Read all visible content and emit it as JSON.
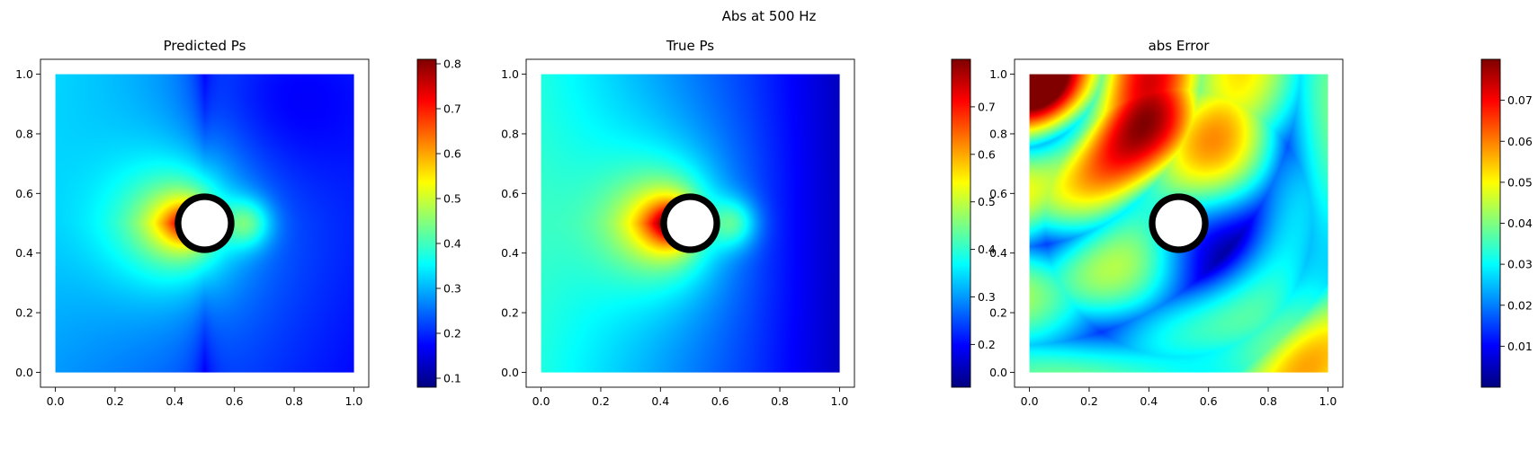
{
  "figure": {
    "suptitle": "Abs at 500 Hz"
  },
  "chart_data": [
    {
      "type": "heatmap",
      "title": "Predicted Ps",
      "field": "predicted",
      "xlim": [
        -0.05,
        1.05
      ],
      "ylim": [
        -0.05,
        1.05
      ],
      "x_ticks": [
        0.0,
        0.2,
        0.4,
        0.6,
        0.8,
        1.0
      ],
      "y_ticks": [
        0.0,
        0.2,
        0.4,
        0.6,
        0.8,
        1.0
      ],
      "x_tick_labels": [
        "0.0",
        "0.2",
        "0.4",
        "0.6",
        "0.8",
        "1.0"
      ],
      "y_tick_labels": [
        "0.0",
        "0.2",
        "0.4",
        "0.6",
        "0.8",
        "1.0"
      ],
      "obstacle": {
        "center": [
          0.5,
          0.5
        ],
        "radius": 0.1
      },
      "colormap": "jet",
      "colorbar": {
        "range": [
          0.08,
          0.81
        ],
        "ticks": [
          0.1,
          0.2,
          0.3,
          0.4,
          0.5,
          0.6,
          0.7,
          0.8
        ],
        "tick_labels": [
          "0.1",
          "0.2",
          "0.3",
          "0.4",
          "0.5",
          "0.6",
          "0.7",
          "0.8"
        ]
      }
    },
    {
      "type": "heatmap",
      "title": "True Ps",
      "field": "true",
      "xlim": [
        -0.05,
        1.05
      ],
      "ylim": [
        -0.05,
        1.05
      ],
      "x_ticks": [
        0.0,
        0.2,
        0.4,
        0.6,
        0.8,
        1.0
      ],
      "y_ticks": [
        0.0,
        0.2,
        0.4,
        0.6,
        0.8,
        1.0
      ],
      "x_tick_labels": [
        "0.0",
        "0.2",
        "0.4",
        "0.6",
        "0.8",
        "1.0"
      ],
      "y_tick_labels": [
        "0.0",
        "0.2",
        "0.4",
        "0.6",
        "0.8",
        "1.0"
      ],
      "obstacle": {
        "center": [
          0.5,
          0.5
        ],
        "radius": 0.1
      },
      "colormap": "jet",
      "colorbar": {
        "range": [
          0.11,
          0.8
        ],
        "ticks": [
          0.2,
          0.3,
          0.4,
          0.5,
          0.6,
          0.7
        ],
        "tick_labels": [
          "0.2",
          "0.3",
          "0.4",
          "0.5",
          "0.6",
          "0.7"
        ]
      }
    },
    {
      "type": "heatmap",
      "title": "abs Error",
      "field": "error",
      "xlim": [
        -0.05,
        1.05
      ],
      "ylim": [
        -0.05,
        1.05
      ],
      "x_ticks": [
        0.0,
        0.2,
        0.4,
        0.6,
        0.8,
        1.0
      ],
      "y_ticks": [
        0.0,
        0.2,
        0.4,
        0.6,
        0.8,
        1.0
      ],
      "x_tick_labels": [
        "0.0",
        "0.2",
        "0.4",
        "0.6",
        "0.8",
        "1.0"
      ],
      "y_tick_labels": [
        "0.0",
        "0.2",
        "0.4",
        "0.6",
        "0.8",
        "1.0"
      ],
      "obstacle": {
        "center": [
          0.5,
          0.5
        ],
        "radius": 0.1
      },
      "colormap": "jet",
      "colorbar": {
        "range": [
          0.0,
          0.08
        ],
        "ticks": [
          0.01,
          0.02,
          0.03,
          0.04,
          0.05,
          0.06,
          0.07
        ],
        "tick_labels": [
          "0.01",
          "0.02",
          "0.03",
          "0.04",
          "0.05",
          "0.06",
          "0.07"
        ]
      }
    }
  ]
}
